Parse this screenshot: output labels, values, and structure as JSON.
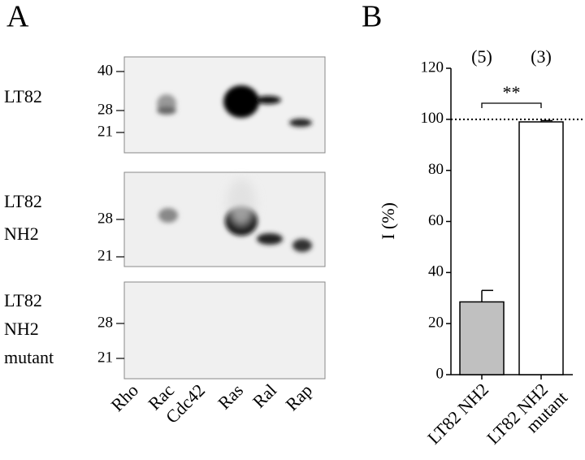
{
  "panel_a": {
    "label": "A",
    "blots": [
      {
        "labels": [
          "LT82"
        ],
        "markers": [
          40,
          28,
          21
        ]
      },
      {
        "labels": [
          "LT82",
          "NH2"
        ],
        "markers": [
          28,
          21
        ]
      },
      {
        "labels": [
          "LT82",
          "NH2",
          "mutant"
        ],
        "markers": [
          28,
          21
        ]
      }
    ],
    "lanes": [
      "Rho",
      "Rac",
      "Cdc42",
      "Ras",
      "Ral",
      "Rap"
    ]
  },
  "chart_data": {
    "type": "bar",
    "panel_label": "B",
    "ylabel": "I (%)",
    "categories": [
      [
        "LT82 NH2"
      ],
      [
        "LT82 NH2",
        "mutant"
      ]
    ],
    "values": [
      28.5,
      99
    ],
    "errors": [
      4.5,
      0.5
    ],
    "colors": [
      "#c0c0c0",
      "#ffffff"
    ],
    "counts": [
      "(5)",
      "(3)"
    ],
    "significance": "**",
    "reference_line": 100,
    "ylim": [
      0,
      120
    ],
    "yticks": [
      0,
      20,
      40,
      60,
      80,
      100,
      120
    ]
  }
}
